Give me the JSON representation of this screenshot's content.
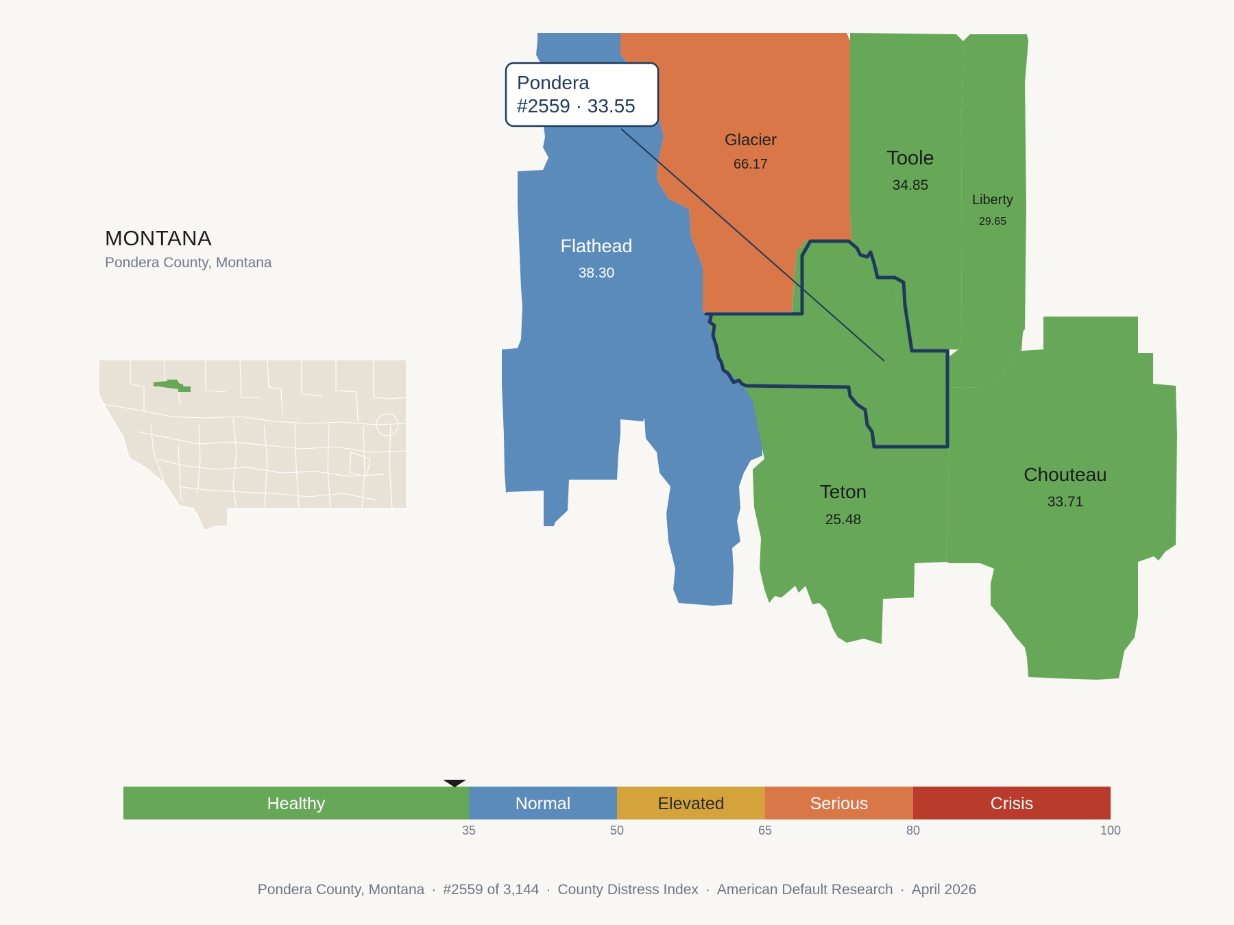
{
  "state_title": "MONTANA",
  "state_subtitle": "Pondera County, Montana",
  "callout": {
    "name": "Pondera",
    "detail": "#2559 · 33.55"
  },
  "counties": [
    {
      "id": "flathead",
      "name": "Flathead",
      "value": "38.30",
      "color": "#5b8bba",
      "text_color": "#ffffff"
    },
    {
      "id": "glacier",
      "name": "Glacier",
      "value": "66.17",
      "color": "#da7749",
      "text_color": "#222222"
    },
    {
      "id": "toole",
      "name": "Toole",
      "value": "34.85",
      "color": "#66a858",
      "text_color": "#1c1c1c"
    },
    {
      "id": "liberty",
      "name": "Liberty",
      "value": "29.65",
      "color": "#66a858",
      "text_color": "#1c1c1c"
    },
    {
      "id": "teton",
      "name": "Teton",
      "value": "25.48",
      "color": "#66a858",
      "text_color": "#1c1c1c"
    },
    {
      "id": "chouteau",
      "name": "Chouteau",
      "value": "33.71",
      "color": "#66a858",
      "text_color": "#1c1c1c"
    },
    {
      "id": "pondera",
      "name": "Pondera",
      "value": "33.55",
      "color": "#66a858",
      "text_color": "#1c1c1c"
    }
  ],
  "highlight_color": "#1f3a5c",
  "legend": {
    "segments": [
      {
        "label": "Healthy",
        "min": 0,
        "max": 35,
        "color": "#66a858",
        "text_color": "#ffffff"
      },
      {
        "label": "Normal",
        "min": 35,
        "max": 50,
        "color": "#5b8bba",
        "text_color": "#ffffff"
      },
      {
        "label": "Elevated",
        "min": 50,
        "max": 65,
        "color": "#d5a33c",
        "text_color": "#2a2a2a"
      },
      {
        "label": "Serious",
        "min": 65,
        "max": 80,
        "color": "#da7749",
        "text_color": "#ffffff"
      },
      {
        "label": "Crisis",
        "min": 80,
        "max": 100,
        "color": "#b83b2b",
        "text_color": "#ffffff"
      }
    ],
    "ticks": [
      "35",
      "50",
      "65",
      "80",
      "100"
    ],
    "marker_value": 33.55
  },
  "footer": {
    "county": "Pondera County, Montana",
    "rank": "#2559 of 3,144",
    "index": "County Distress Index",
    "org": "American Default Research",
    "date": "April 2026"
  }
}
